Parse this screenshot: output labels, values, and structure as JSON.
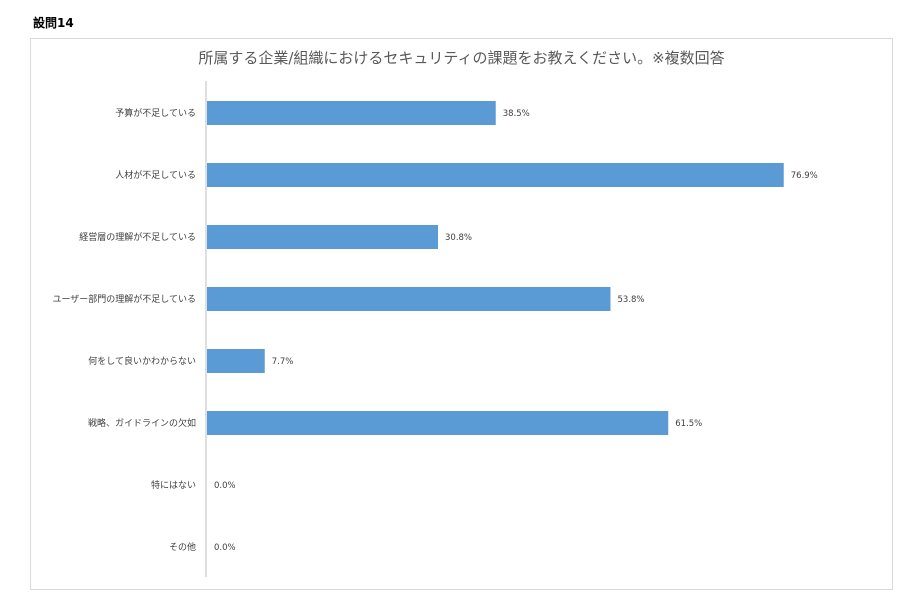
{
  "question": {
    "label": "設問14"
  },
  "chart_data": {
    "type": "bar",
    "orientation": "horizontal",
    "title": "所属する企業/組織におけるセキュリティの課題をお教えください。※複数回答",
    "categories": [
      "予算が不足している",
      "人材が不足している",
      "経営層の理解が不足している",
      "ユーザー部門の理解が不足している",
      "何をして良いかわからない",
      "戦略、ガイドラインの欠如",
      "特にはない",
      "その他"
    ],
    "values": [
      38.5,
      76.9,
      30.8,
      53.8,
      7.7,
      61.5,
      0.0,
      0.0
    ],
    "value_labels": [
      "38.5%",
      "76.9%",
      "30.8%",
      "53.8%",
      "7.7%",
      "61.5%",
      "0.0%",
      "0.0%"
    ],
    "xlim": [
      0,
      100
    ],
    "grid": false,
    "legend": "none",
    "bar_color": "#5b9bd5"
  }
}
